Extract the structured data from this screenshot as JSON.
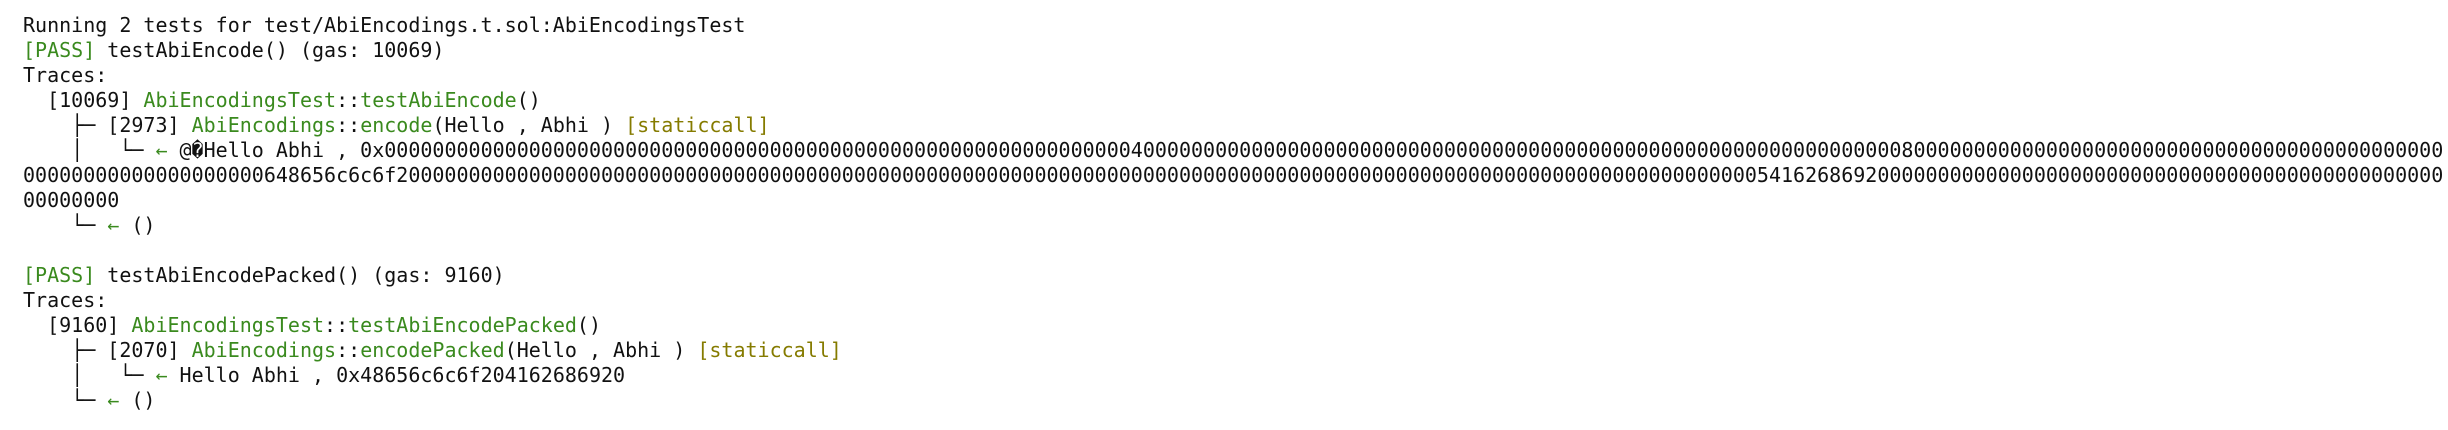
{
  "lines": [
    [
      {
        "text": "Running 2 tests for test/AbiEncodings.t.sol:AbiEncodingsTest"
      }
    ],
    [
      {
        "text": "[PASS]",
        "color": "#3a8a1e"
      },
      {
        "text": " testAbiEncode() (gas: 10069)"
      }
    ],
    [
      {
        "text": "Traces:"
      }
    ],
    [
      {
        "text": "  [10069] "
      },
      {
        "text": "AbiEncodingsTest",
        "color": "#3a8a1e"
      },
      {
        "text": "::"
      },
      {
        "text": "testAbiEncode",
        "color": "#3a8a1e"
      },
      {
        "text": "()"
      }
    ],
    [
      {
        "text": "    ├─ [2973] "
      },
      {
        "text": "AbiEncodings",
        "color": "#3a8a1e"
      },
      {
        "text": "::"
      },
      {
        "text": "encode",
        "color": "#3a8a1e"
      },
      {
        "text": "(Hello , Abhi ) "
      },
      {
        "text": "[staticcall]",
        "color": "#857b00"
      }
    ],
    [
      {
        "text": "    │   └─ "
      },
      {
        "text": "←",
        "color": "#3a8a1e"
      },
      {
        "text": " @�Hello Abhi , 0x00000000000000000000000000000000000000000000000000000000000000400000000000000000000000000000000000000000000000000000000000000080000000000000000000000000000000000000000000000000000000000000000648656c6c6f2000000000000000000000000000000000000000000000000000000000000000000000000000000000000000000000000000000000000000054162686920000000000000000000000000000000000000000000000000000000"
      }
    ],
    [
      {
        "text": "    └─ "
      },
      {
        "text": "←",
        "color": "#3a8a1e"
      },
      {
        "text": " ()"
      }
    ],
    [],
    [
      {
        "text": "[PASS]",
        "color": "#3a8a1e"
      },
      {
        "text": " testAbiEncodePacked() (gas: 9160)"
      }
    ],
    [
      {
        "text": "Traces:"
      }
    ],
    [
      {
        "text": "  [9160] "
      },
      {
        "text": "AbiEncodingsTest",
        "color": "#3a8a1e"
      },
      {
        "text": "::"
      },
      {
        "text": "testAbiEncodePacked",
        "color": "#3a8a1e"
      },
      {
        "text": "()"
      }
    ],
    [
      {
        "text": "    ├─ [2070] "
      },
      {
        "text": "AbiEncodings",
        "color": "#3a8a1e"
      },
      {
        "text": "::"
      },
      {
        "text": "encodePacked",
        "color": "#3a8a1e"
      },
      {
        "text": "(Hello , Abhi ) "
      },
      {
        "text": "[staticcall]",
        "color": "#857b00"
      }
    ],
    [
      {
        "text": "    │   └─ "
      },
      {
        "text": "←",
        "color": "#3a8a1e"
      },
      {
        "text": " Hello Abhi , 0x48656c6c6f204162686920"
      }
    ],
    [
      {
        "text": "    └─ "
      },
      {
        "text": "←",
        "color": "#3a8a1e"
      },
      {
        "text": " ()"
      }
    ]
  ]
}
